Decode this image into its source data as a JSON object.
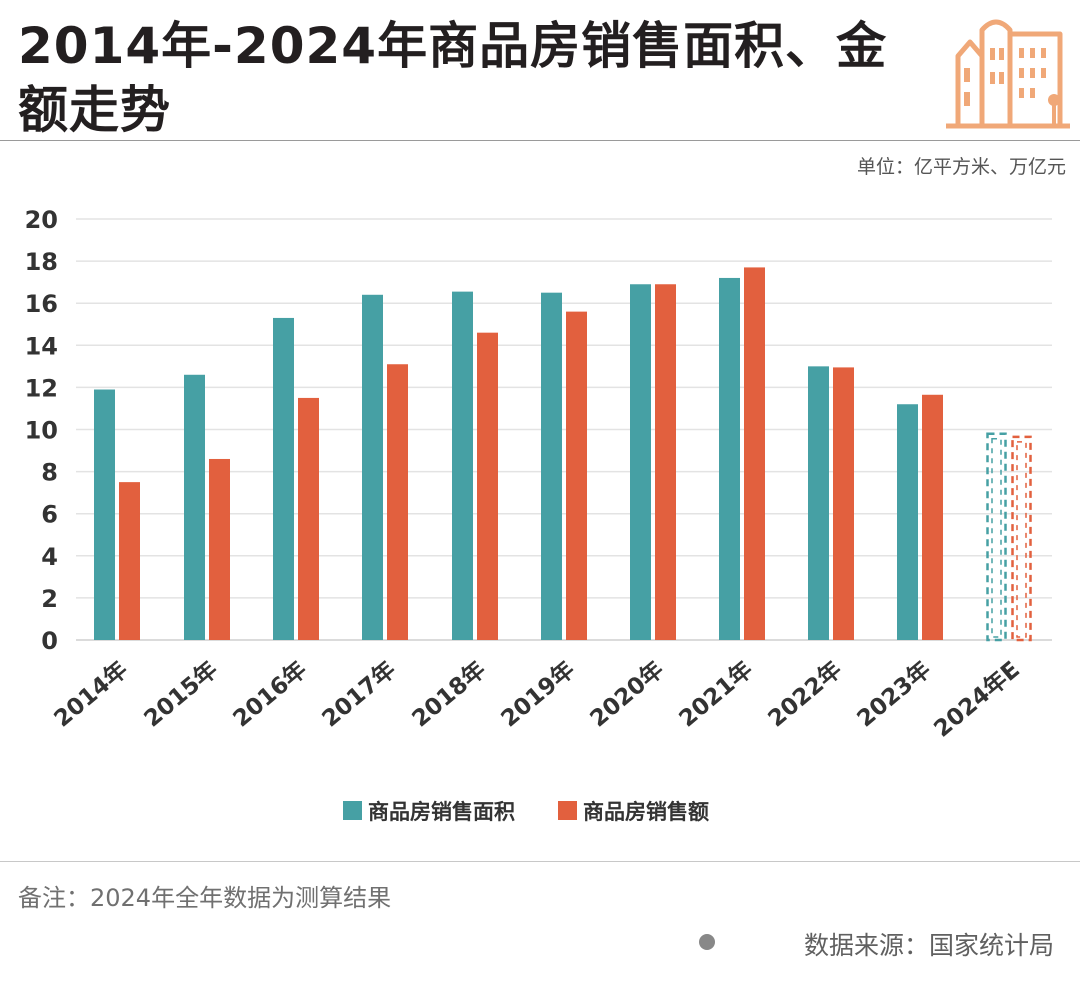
{
  "title": "2014年-2024年商品房销售面积、金额走势",
  "unit_label": "单位：亿平方米、万亿元",
  "note": "备注：2024年全年数据为测算结果",
  "source": "数据来源：国家统计局",
  "icons": {
    "logo": "city-buildings-icon",
    "source_dot": "dot-icon"
  },
  "colors": {
    "area": "#46a0a4",
    "amount": "#e2603e",
    "grid": "#e3e3e3",
    "logo": "#f0a878"
  },
  "chart_data": {
    "type": "bar",
    "categories": [
      "2014年",
      "2015年",
      "2016年",
      "2017年",
      "2018年",
      "2019年",
      "2020年",
      "2021年",
      "2022年",
      "2023年",
      "2024年E"
    ],
    "series": [
      {
        "name": "商品房销售面积",
        "values": [
          11.9,
          12.6,
          15.3,
          16.4,
          16.55,
          16.5,
          16.9,
          17.2,
          13.0,
          11.2,
          9.8
        ]
      },
      {
        "name": "商品房销售额",
        "values": [
          7.5,
          8.6,
          11.5,
          13.1,
          14.6,
          15.6,
          16.9,
          17.7,
          12.95,
          11.65,
          9.65
        ]
      }
    ],
    "estimated_categories": [
      "2024年E"
    ],
    "ylim": [
      0,
      20
    ],
    "yticks": [
      "0",
      "2",
      "4",
      "6",
      "8",
      "10",
      "12",
      "14",
      "16",
      "18",
      "20"
    ],
    "grid": true,
    "legend_position": "bottom"
  }
}
